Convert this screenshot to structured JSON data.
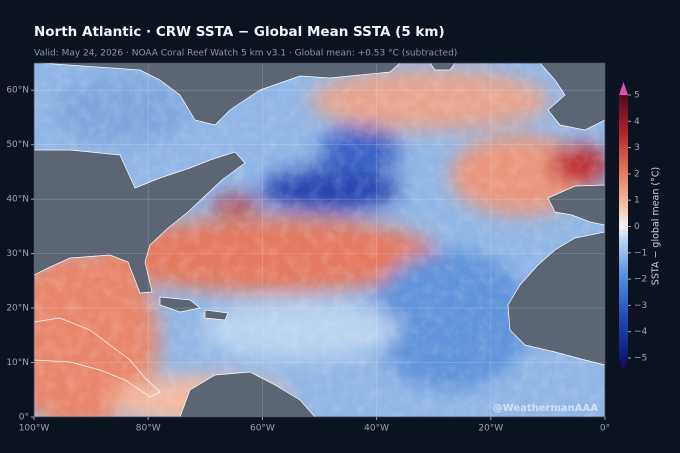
{
  "title": "North Atlantic · CRW SSTA − Global Mean SSTA (5 km)",
  "subtitle": "Valid: May 24, 2026  ·  NOAA Coral Reef Watch 5 km v3.1  ·  Global mean: +0.53 °C (subtracted)",
  "map": {
    "lon_lim": [
      -100,
      0
    ],
    "lat_lim": [
      0,
      65
    ],
    "lon_ticks": [
      {
        "value": -100,
        "label": "100°W"
      },
      {
        "value": -80,
        "label": "80°W"
      },
      {
        "value": -60,
        "label": "60°W"
      },
      {
        "value": -40,
        "label": "40°W"
      },
      {
        "value": -20,
        "label": "20°W"
      },
      {
        "value": 0,
        "label": "0°"
      }
    ],
    "lat_ticks": [
      {
        "value": 0,
        "label": "0°"
      },
      {
        "value": 10,
        "label": "10°N"
      },
      {
        "value": 20,
        "label": "20°N"
      },
      {
        "value": 30,
        "label": "30°N"
      },
      {
        "value": 40,
        "label": "40°N"
      },
      {
        "value": 50,
        "label": "50°N"
      },
      {
        "value": 60,
        "label": "60°N"
      }
    ],
    "watermark": "@WeathermanAAA"
  },
  "colorbar": {
    "label": "SSTA − global mean (°C)",
    "range": [
      -5,
      5
    ],
    "ticks": [
      {
        "value": -5,
        "label": "−5"
      },
      {
        "value": -4,
        "label": "−4"
      },
      {
        "value": -3,
        "label": "−3"
      },
      {
        "value": -2,
        "label": "−2"
      },
      {
        "value": -1,
        "label": "−1"
      },
      0,
      1,
      2,
      3,
      4,
      5
    ]
  }
}
